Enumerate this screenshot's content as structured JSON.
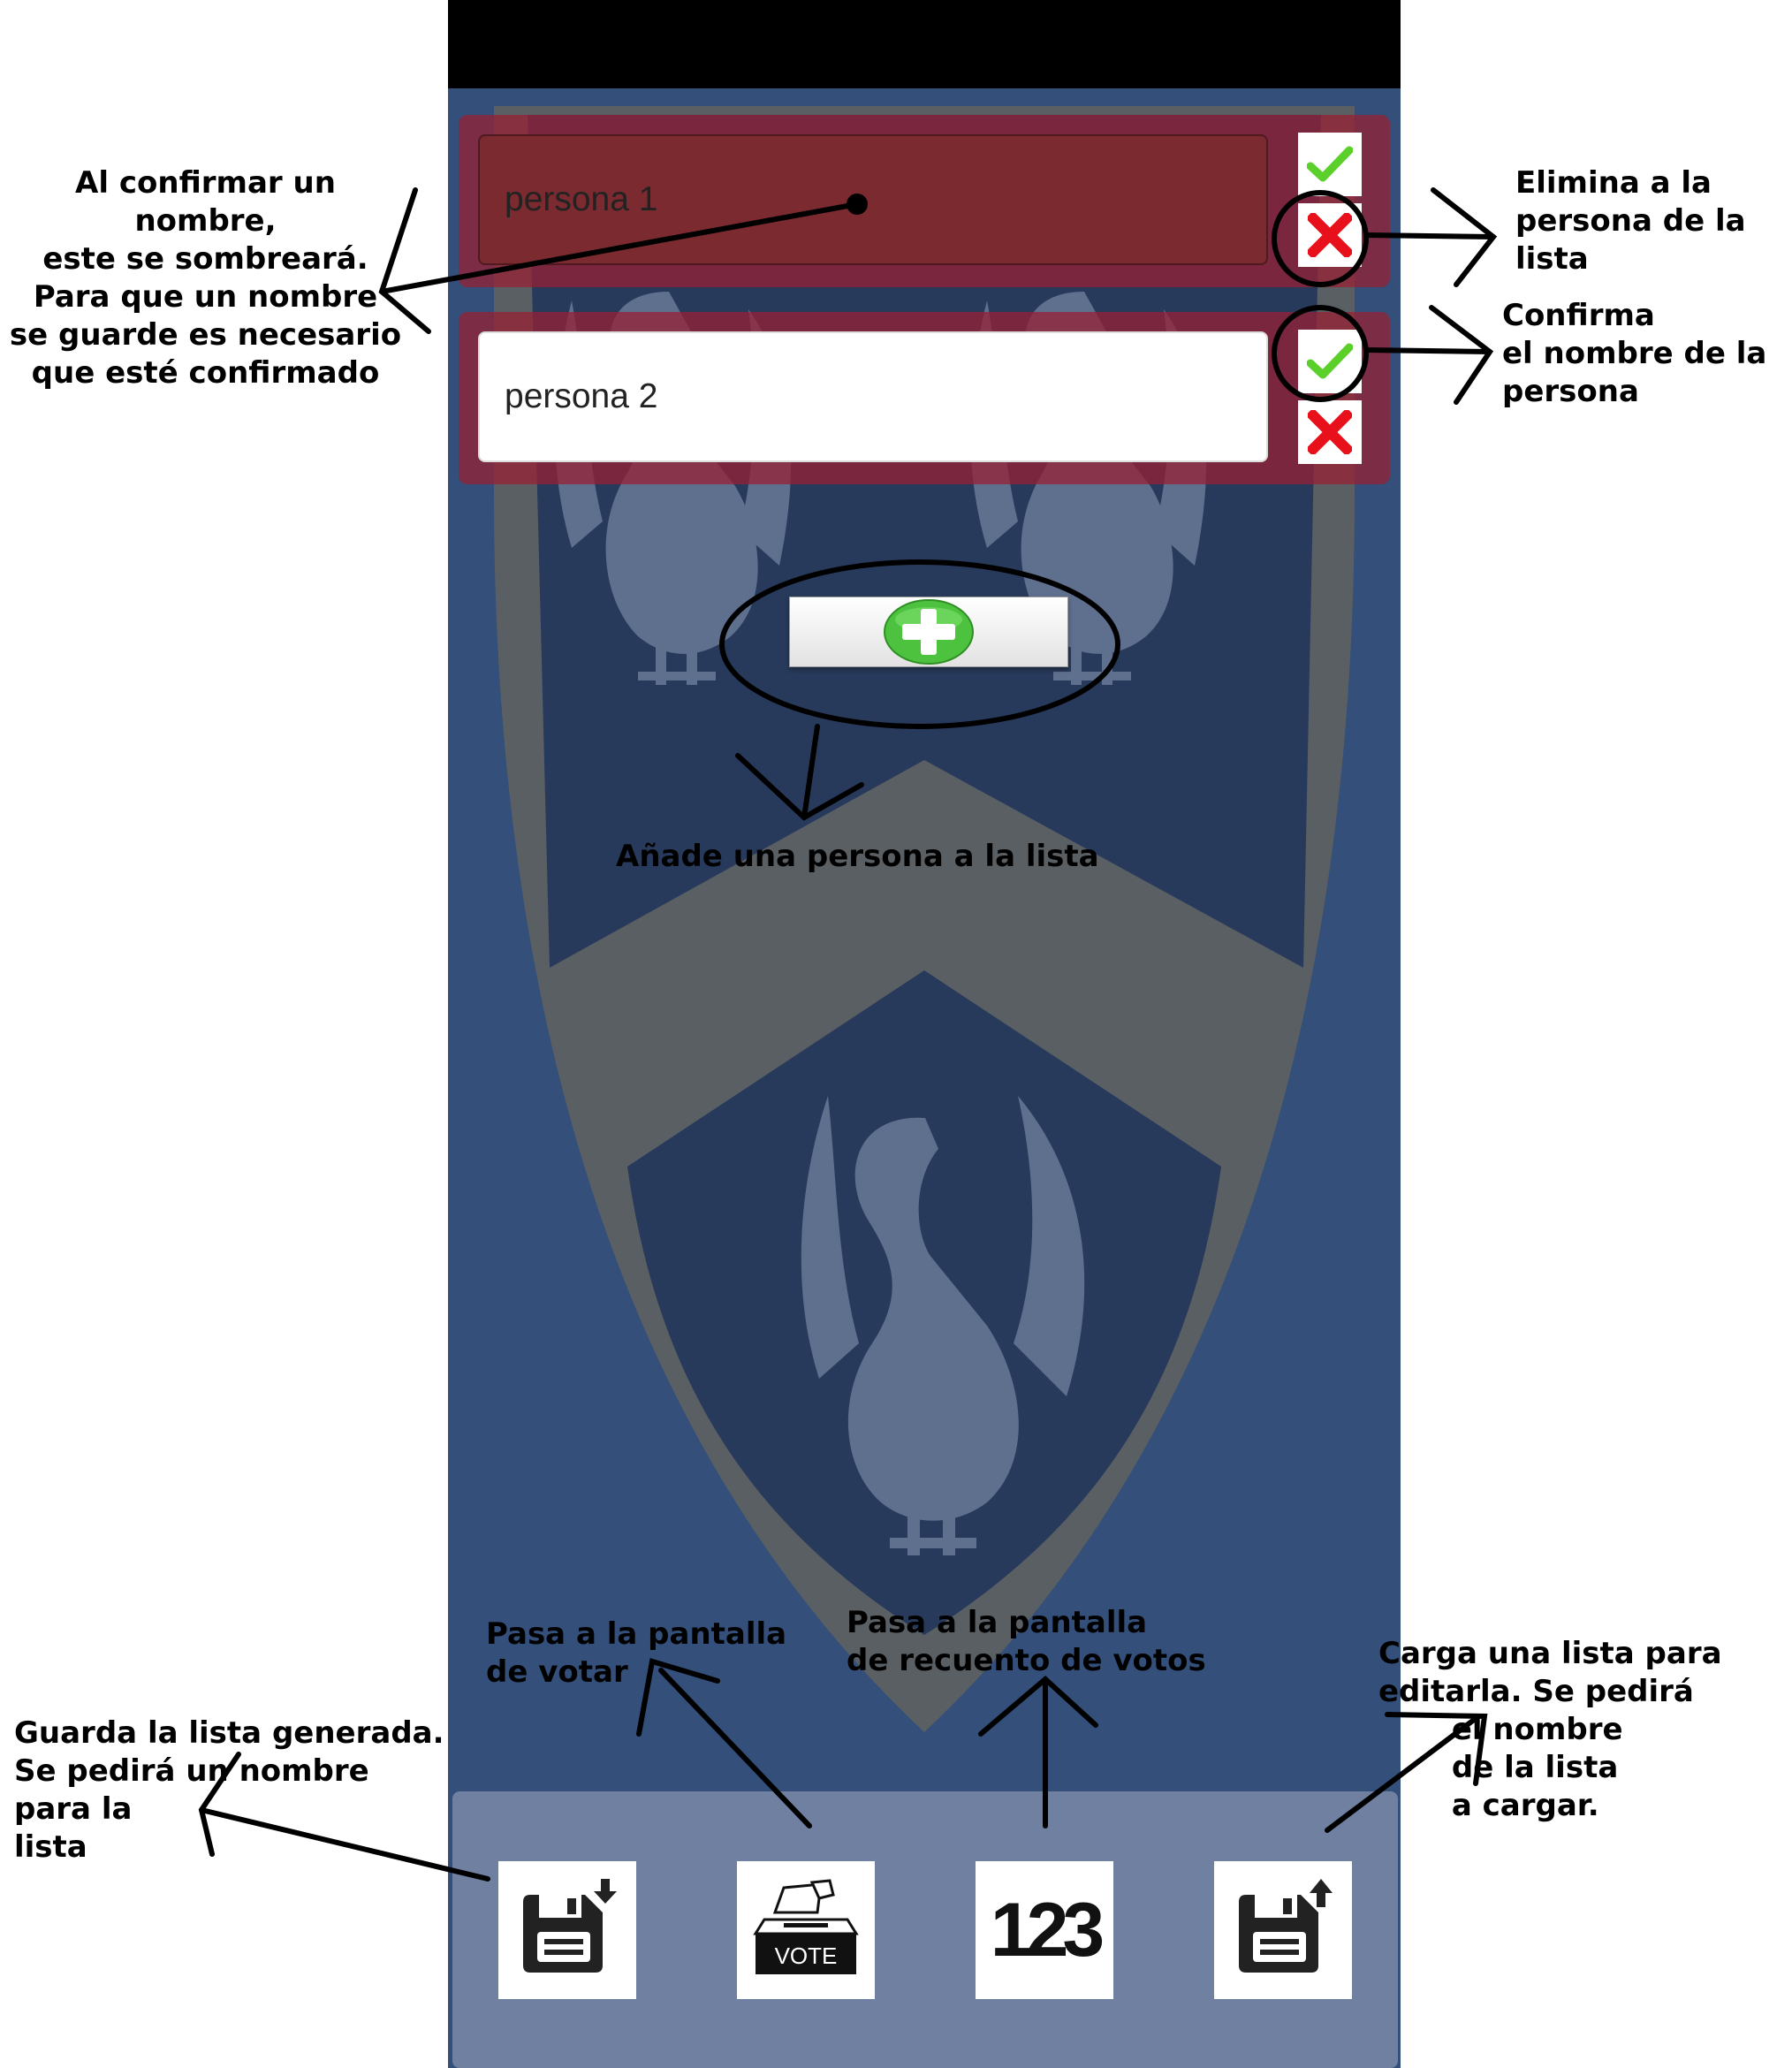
{
  "people": [
    {
      "name": "persona 1",
      "confirmed": true
    },
    {
      "name": "persona 2",
      "confirmed": false
    }
  ],
  "icons": {
    "confirm": "check-icon",
    "remove": "cross-icon",
    "add": "plus-icon",
    "save": "save-download-icon",
    "vote": "ballot-box-icon",
    "count": "numbers-123-icon",
    "load": "save-upload-icon"
  },
  "bottom_bar": {
    "vote_label": "VOTE",
    "count_label": "123"
  },
  "annotations": {
    "confirmed_name": "Al confirmar un\nnombre,\neste se sombreará.\nPara que un nombre\nse guarde es necesario\nque esté confirmado",
    "remove_person": "Elimina a la\npersona de la\nlista",
    "confirm_person": "Confirma\nel nombre de la\npersona",
    "add_person": "Añade una persona a la lista",
    "go_vote": "Pasa a la pantalla\nde votar",
    "go_count": "Pasa a la pantalla\nde recuento de votos",
    "save_list": "Guarda la lista generada.\nSe pedirá un nombre\npara la\nlista",
    "load_list": "Carga una lista para\neditarla. Se pedirá\n       el nombre\n       de la lista\n       a cargar."
  },
  "colors": {
    "background": "#334f7a",
    "row": "#962034",
    "confirmed_field": "#7b2a2f",
    "check": "#5bd02b",
    "cross": "#e8101a",
    "plus": "#4cc23e",
    "bottom_bar": "#6f80a0"
  }
}
